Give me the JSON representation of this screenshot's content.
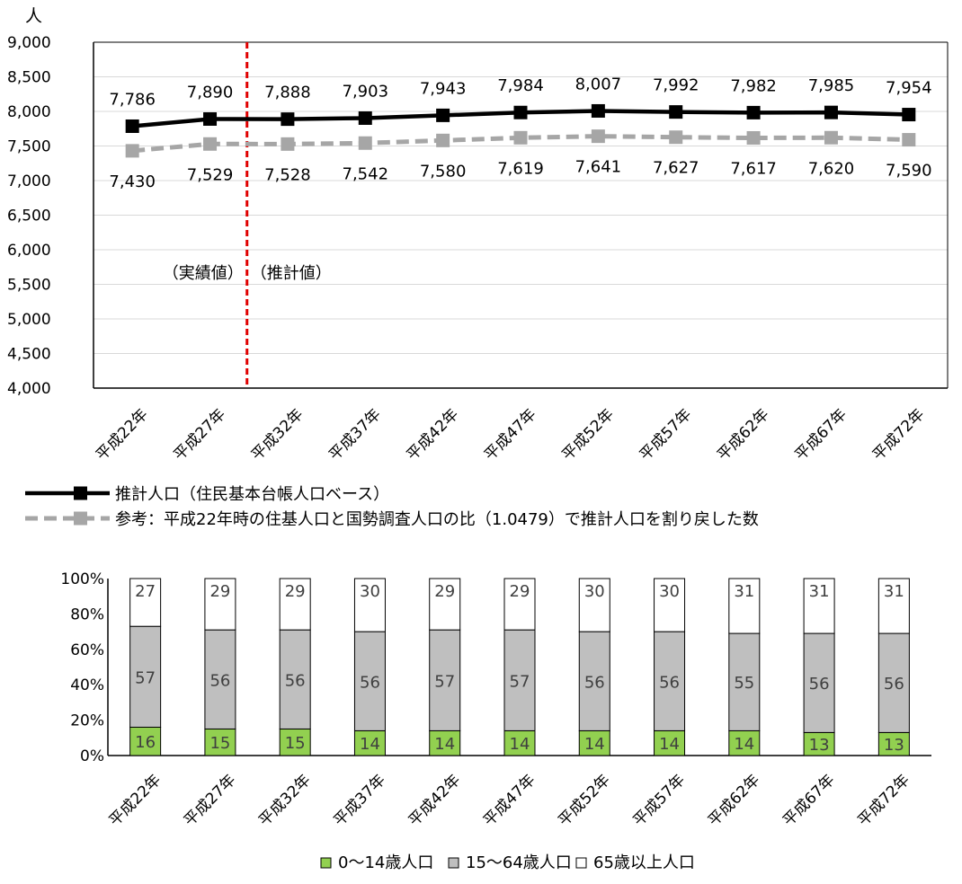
{
  "chart_data": [
    {
      "type": "line",
      "unit_label": "人",
      "categories": [
        "平成22年",
        "平成27年",
        "平成32年",
        "平成37年",
        "平成42年",
        "平成47年",
        "平成52年",
        "平成57年",
        "平成62年",
        "平成67年",
        "平成72年"
      ],
      "ylim": [
        4000,
        9000
      ],
      "yticks": [
        4000,
        4500,
        5000,
        5500,
        6000,
        6500,
        7000,
        7500,
        8000,
        8500,
        9000
      ],
      "ytick_labels": [
        "4,000",
        "4,500",
        "5,000",
        "5,500",
        "6,000",
        "6,500",
        "7,000",
        "7,500",
        "8,000",
        "8,500",
        "9,000"
      ],
      "grid": true,
      "series": [
        {
          "name": "推計人口（住民基本台帳人口ベース）",
          "color": "#000000",
          "line_style": "solid",
          "values": [
            7786,
            7890,
            7888,
            7903,
            7943,
            7984,
            8007,
            7992,
            7982,
            7985,
            7954
          ],
          "labels": [
            "7,786",
            "7,890",
            "7,888",
            "7,903",
            "7,943",
            "7,984",
            "8,007",
            "7,992",
            "7,982",
            "7,985",
            "7,954"
          ],
          "label_position": "above"
        },
        {
          "name": "参考：平成22年時の住基人口と国勢調査人口の比（1.0479）で推計人口を割り戻した数",
          "color": "#a6a6a6",
          "line_style": "dashed",
          "values": [
            7430,
            7529,
            7528,
            7542,
            7580,
            7619,
            7641,
            7627,
            7617,
            7620,
            7590
          ],
          "labels": [
            "7,430",
            "7,529",
            "7,528",
            "7,542",
            "7,580",
            "7,619",
            "7,641",
            "7,627",
            "7,617",
            "7,620",
            "7,590"
          ],
          "label_position": "below"
        }
      ],
      "divider": {
        "after_category": "平成27年",
        "color": "#e00000",
        "style": "dashed",
        "left_label": "（実績値）",
        "right_label": "（推計値）"
      },
      "legend_placement": "bottom-left"
    },
    {
      "type": "bar",
      "stacked": true,
      "categories": [
        "平成22年",
        "平成27年",
        "平成32年",
        "平成37年",
        "平成42年",
        "平成47年",
        "平成52年",
        "平成57年",
        "平成62年",
        "平成67年",
        "平成72年"
      ],
      "ylim": [
        0,
        100
      ],
      "ytick_labels": [
        "0%",
        "20%",
        "40%",
        "60%",
        "80%",
        "100%"
      ],
      "series": [
        {
          "name": "0〜14歳人口",
          "color": "#92d050",
          "values": [
            16,
            15,
            15,
            14,
            14,
            14,
            14,
            14,
            14,
            13,
            13
          ]
        },
        {
          "name": "15〜64歳人口",
          "color": "#bfbfbf",
          "values": [
            57,
            56,
            56,
            56,
            57,
            57,
            56,
            56,
            55,
            56,
            56
          ]
        },
        {
          "name": "65歳以上人口",
          "color": "#ffffff",
          "values": [
            27,
            29,
            29,
            30,
            29,
            29,
            30,
            30,
            31,
            31,
            31
          ]
        }
      ],
      "legend_placement": "bottom-center"
    }
  ]
}
